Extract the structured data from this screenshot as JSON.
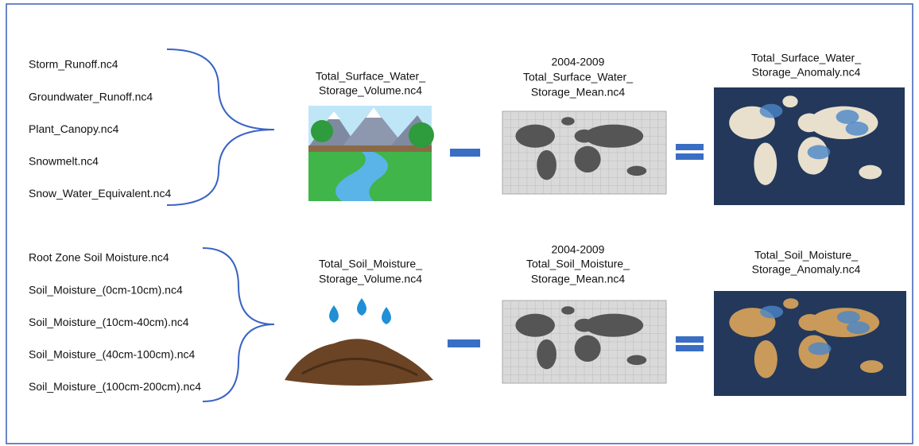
{
  "rows": [
    {
      "inputs": [
        "Storm_Runoff.nc4",
        "Groundwater_Runoff.nc4",
        "Plant_Canopy.nc4",
        "Snowmelt.nc4",
        "Snow_Water_Equivalent.nc4"
      ],
      "volume_label": [
        "Total_Surface_Water_",
        "Storage_Volume.nc4"
      ],
      "mean_label": [
        "2004-2009",
        "Total_Surface_Water_",
        "Storage_Mean.nc4"
      ],
      "anomaly_label": [
        "Total_Surface_Water_",
        "Storage_Anomaly.nc4"
      ]
    },
    {
      "inputs": [
        "Root Zone Soil Moisture.nc4",
        "Soil_Moisture_(0cm-10cm).nc4",
        "Soil_Moisture_(10cm-40cm).nc4",
        "Soil_Moisture_(40cm-100cm).nc4",
        "Soil_Moisture_(100cm-200cm).nc4"
      ],
      "volume_label": [
        "Total_Soil_Moisture_",
        "Storage_Volume.nc4"
      ],
      "mean_label": [
        "2004-2009",
        "Total_Soil_Moisture_",
        "Storage_Mean.nc4"
      ],
      "anomaly_label": [
        "Total_Soil_Moisture_",
        "Storage_Anomaly.nc4"
      ]
    }
  ]
}
